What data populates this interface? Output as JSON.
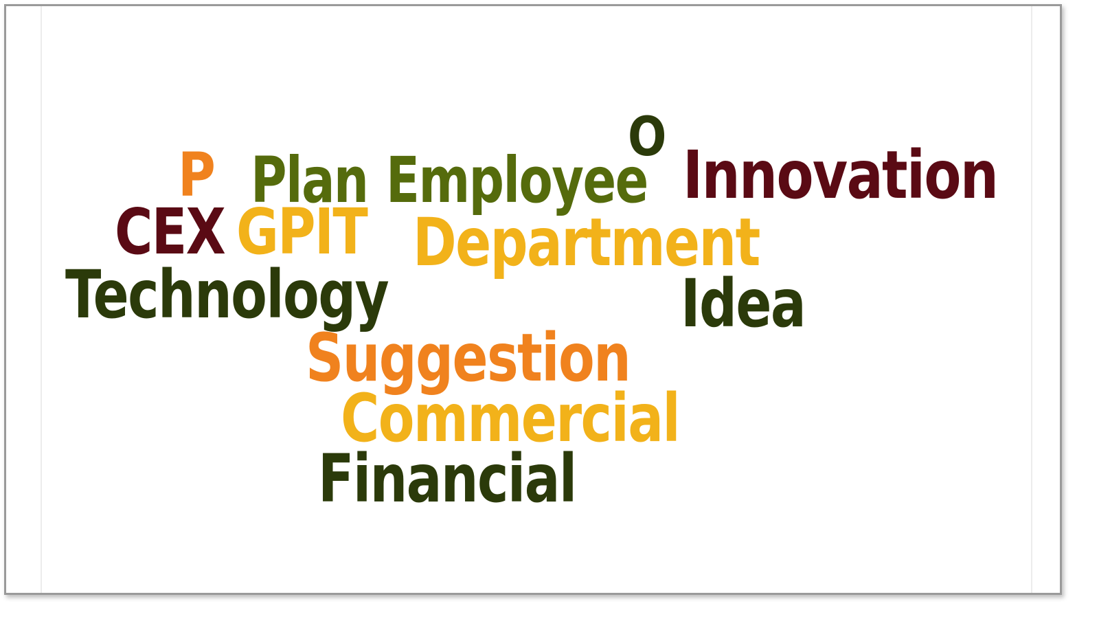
{
  "words": {
    "o": {
      "text": "O",
      "color": "#2b3a0a"
    },
    "p": {
      "text": "P",
      "color": "#f0821e"
    },
    "plan": {
      "text": "Plan",
      "color": "#556b0c"
    },
    "employee": {
      "text": "Employee",
      "color": "#556b0c"
    },
    "innovation": {
      "text": "Innovation",
      "color": "#5a0a14"
    },
    "cex": {
      "text": "CEX",
      "color": "#5a0a14"
    },
    "gpit": {
      "text": "GPIT",
      "color": "#f2b21a"
    },
    "department": {
      "text": "Department",
      "color": "#f2b21a"
    },
    "technology": {
      "text": "Technology",
      "color": "#2b3a0a"
    },
    "idea": {
      "text": "Idea",
      "color": "#2b3a0a"
    },
    "suggestion": {
      "text": "Suggestion",
      "color": "#f0821e"
    },
    "commercial": {
      "text": "Commercial",
      "color": "#f2b21a"
    },
    "financial": {
      "text": "Financial",
      "color": "#2b3a0a"
    }
  }
}
